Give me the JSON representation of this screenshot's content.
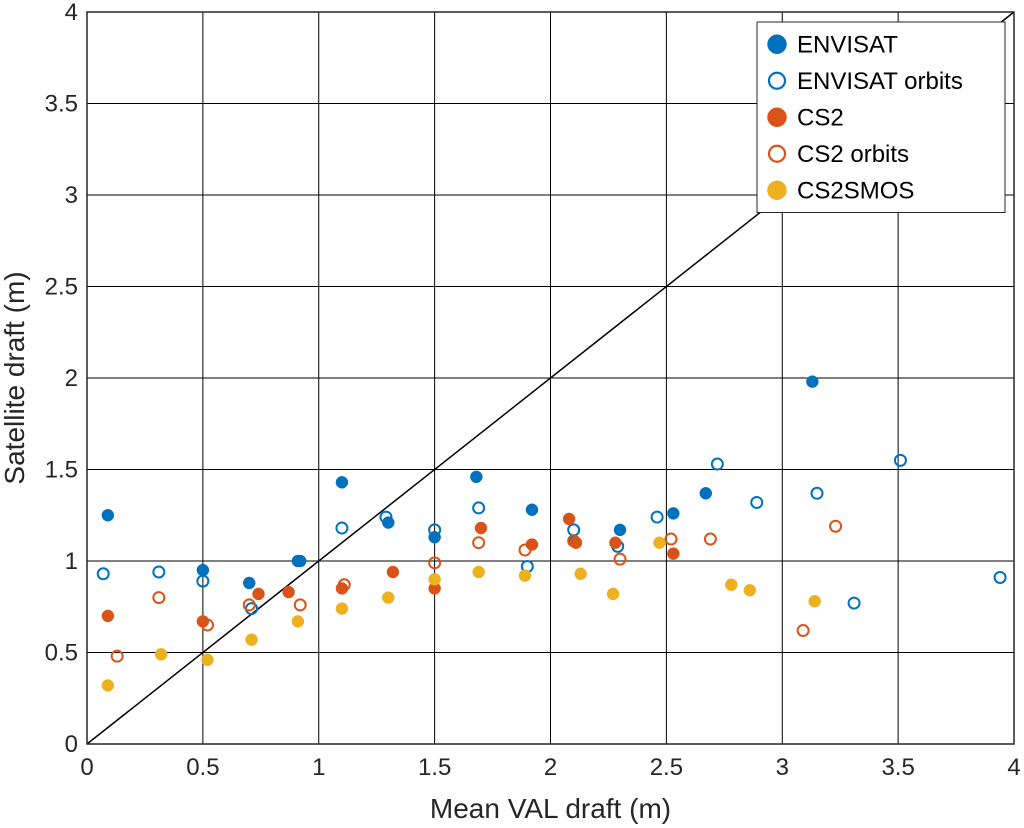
{
  "chart_data": {
    "type": "scatter",
    "title": "",
    "xlabel": "Mean VAL draft (m)",
    "ylabel": "Satellite draft (m)",
    "xlim": [
      0,
      4
    ],
    "ylim": [
      0,
      4
    ],
    "xticks": [
      0,
      0.5,
      1,
      1.5,
      2,
      2.5,
      3,
      3.5,
      4
    ],
    "yticks": [
      0,
      0.5,
      1,
      1.5,
      2,
      2.5,
      3,
      3.5,
      4
    ],
    "xtick_labels": [
      "0",
      "0.5",
      "1",
      "1.5",
      "2",
      "2.5",
      "3",
      "3.5",
      "4"
    ],
    "ytick_labels": [
      "0",
      "0.5",
      "1",
      "1.5",
      "2",
      "2.5",
      "3",
      "3.5",
      "4"
    ],
    "grid": true,
    "reference_line": {
      "name": "1:1 line",
      "x": [
        0,
        4
      ],
      "y": [
        0,
        4
      ],
      "color": "#000000"
    },
    "legend_position": "top-right",
    "series": [
      {
        "name": "ENVISAT",
        "marker": "filled",
        "color": "#0072BD",
        "points": [
          [
            0.09,
            1.25
          ],
          [
            0.5,
            0.95
          ],
          [
            0.7,
            0.88
          ],
          [
            0.91,
            1.0
          ],
          [
            0.92,
            1.0
          ],
          [
            1.1,
            1.43
          ],
          [
            1.3,
            1.21
          ],
          [
            1.5,
            1.13
          ],
          [
            1.68,
            1.46
          ],
          [
            1.92,
            1.28
          ],
          [
            2.1,
            1.11
          ],
          [
            2.3,
            1.17
          ],
          [
            2.53,
            1.26
          ],
          [
            2.67,
            1.37
          ],
          [
            3.13,
            1.98
          ]
        ]
      },
      {
        "name": "ENVISAT orbits",
        "marker": "open",
        "color": "#0072BD",
        "points": [
          [
            0.07,
            0.93
          ],
          [
            0.31,
            0.94
          ],
          [
            0.5,
            0.89
          ],
          [
            0.71,
            0.74
          ],
          [
            1.1,
            1.18
          ],
          [
            1.29,
            1.24
          ],
          [
            1.5,
            1.17
          ],
          [
            1.69,
            1.29
          ],
          [
            1.9,
            0.97
          ],
          [
            2.1,
            1.17
          ],
          [
            2.29,
            1.08
          ],
          [
            2.46,
            1.24
          ],
          [
            2.72,
            1.53
          ],
          [
            2.89,
            1.32
          ],
          [
            3.15,
            1.37
          ],
          [
            3.31,
            0.77
          ],
          [
            3.51,
            1.55
          ],
          [
            3.94,
            0.91
          ]
        ]
      },
      {
        "name": "CS2",
        "marker": "filled",
        "color": "#D95319",
        "points": [
          [
            0.09,
            0.7
          ],
          [
            0.5,
            0.67
          ],
          [
            0.74,
            0.82
          ],
          [
            0.87,
            0.83
          ],
          [
            1.1,
            0.85
          ],
          [
            1.32,
            0.94
          ],
          [
            1.5,
            0.85
          ],
          [
            1.7,
            1.18
          ],
          [
            1.92,
            1.09
          ],
          [
            2.08,
            1.23
          ],
          [
            2.11,
            1.1
          ],
          [
            2.28,
            1.1
          ],
          [
            2.53,
            1.04
          ]
        ]
      },
      {
        "name": "CS2 orbits",
        "marker": "open",
        "color": "#D95319",
        "points": [
          [
            0.13,
            0.48
          ],
          [
            0.31,
            0.8
          ],
          [
            0.52,
            0.65
          ],
          [
            0.7,
            0.76
          ],
          [
            0.92,
            0.76
          ],
          [
            1.11,
            0.87
          ],
          [
            1.5,
            0.99
          ],
          [
            1.69,
            1.1
          ],
          [
            1.89,
            1.06
          ],
          [
            2.1,
            1.11
          ],
          [
            2.3,
            1.01
          ],
          [
            2.52,
            1.12
          ],
          [
            2.69,
            1.12
          ],
          [
            3.09,
            0.62
          ],
          [
            3.23,
            1.19
          ]
        ]
      },
      {
        "name": "CS2SMOS",
        "marker": "filled",
        "color": "#EDB120",
        "points": [
          [
            0.09,
            0.32
          ],
          [
            0.32,
            0.49
          ],
          [
            0.52,
            0.46
          ],
          [
            0.71,
            0.57
          ],
          [
            0.91,
            0.67
          ],
          [
            1.1,
            0.74
          ],
          [
            1.3,
            0.8
          ],
          [
            1.5,
            0.9
          ],
          [
            1.69,
            0.94
          ],
          [
            1.89,
            0.92
          ],
          [
            2.13,
            0.93
          ],
          [
            2.27,
            0.82
          ],
          [
            2.47,
            1.1
          ],
          [
            2.78,
            0.87
          ],
          [
            2.86,
            0.84
          ],
          [
            3.14,
            0.78
          ]
        ]
      }
    ]
  }
}
